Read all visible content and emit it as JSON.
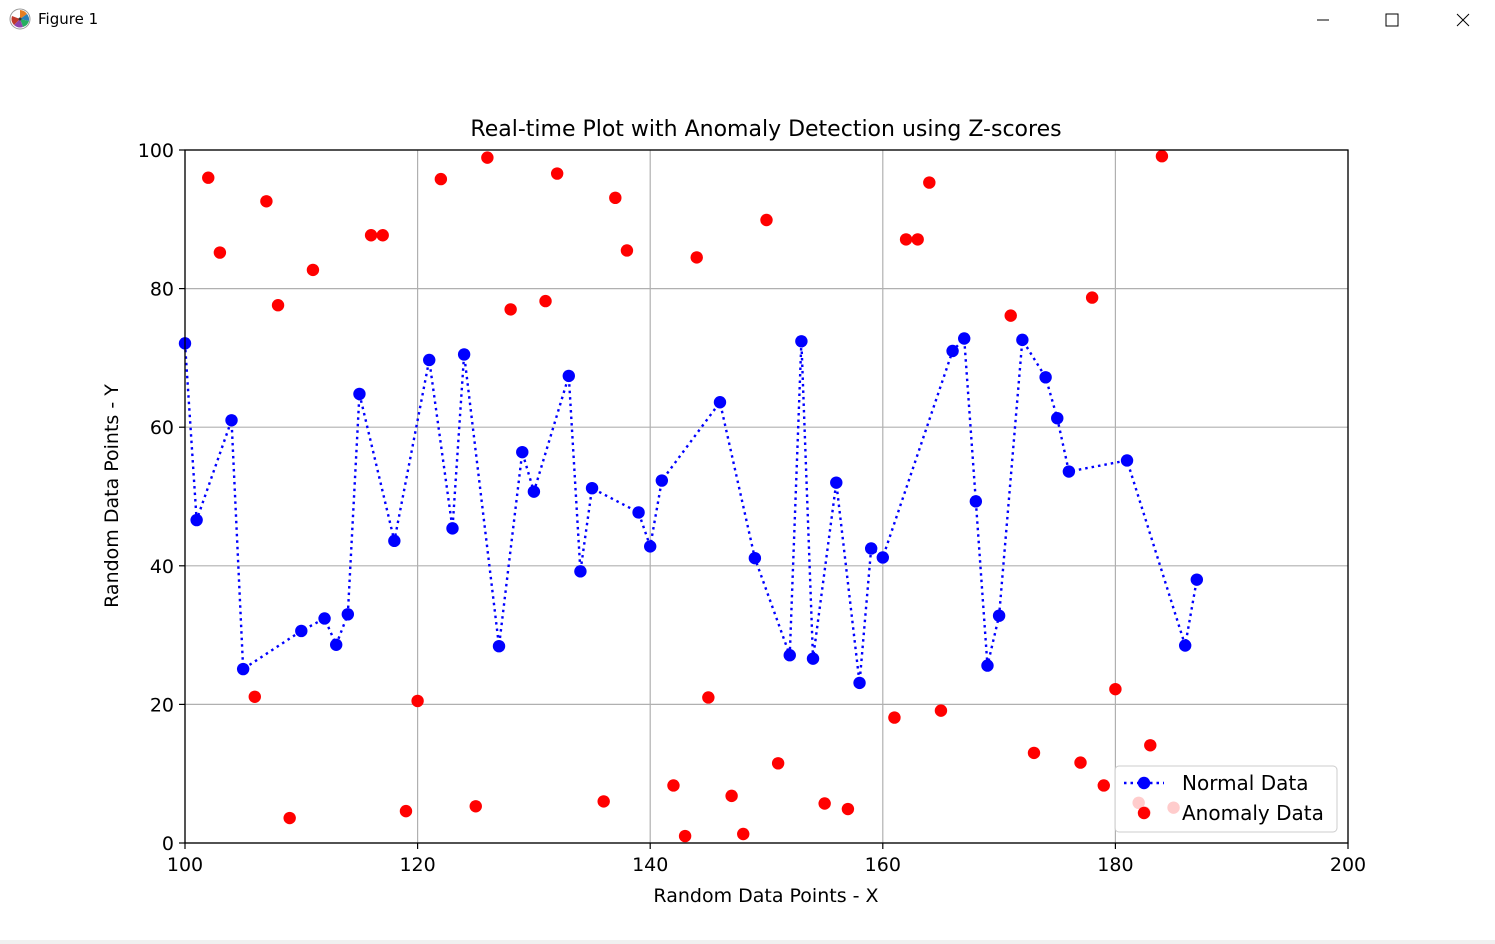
{
  "window": {
    "title": "Figure 1",
    "icon": "matplotlib-logo-icon",
    "controls": [
      "minimize-icon",
      "maximize-icon",
      "close-icon"
    ]
  },
  "chart_data": {
    "type": "scatter",
    "title": "Real-time Plot with Anomaly Detection using Z-scores",
    "xlabel": "Random Data Points - X",
    "ylabel": "Random Data Points - Y",
    "xlim": [
      100,
      200
    ],
    "ylim": [
      0,
      100
    ],
    "xticks": [
      100,
      120,
      140,
      160,
      180,
      200
    ],
    "yticks": [
      0,
      20,
      40,
      60,
      80,
      100
    ],
    "xtick_labels": [
      "100",
      "120",
      "140",
      "160",
      "180",
      "200"
    ],
    "ytick_labels": [
      "0",
      "20",
      "40",
      "60",
      "80",
      "100"
    ],
    "grid": true,
    "legend_position": "lower right",
    "series": [
      {
        "name": "Normal Data",
        "color": "#0000ff",
        "marker": "circle",
        "line_style": "dotted",
        "points": [
          [
            100,
            72.1
          ],
          [
            101,
            46.6
          ],
          [
            104,
            61.0
          ],
          [
            105,
            25.1
          ],
          [
            110,
            30.6
          ],
          [
            112,
            32.4
          ],
          [
            113,
            28.6
          ],
          [
            114,
            33.0
          ],
          [
            115,
            64.8
          ],
          [
            118,
            43.6
          ],
          [
            121,
            69.7
          ],
          [
            123,
            45.4
          ],
          [
            124,
            70.5
          ],
          [
            127,
            28.4
          ],
          [
            129,
            56.4
          ],
          [
            130,
            50.7
          ],
          [
            133,
            67.4
          ],
          [
            134,
            39.2
          ],
          [
            135,
            51.2
          ],
          [
            139,
            47.7
          ],
          [
            140,
            42.8
          ],
          [
            141,
            52.3
          ],
          [
            146,
            63.6
          ],
          [
            149,
            41.1
          ],
          [
            152,
            27.1
          ],
          [
            153,
            72.4
          ],
          [
            154,
            26.6
          ],
          [
            156,
            52.0
          ],
          [
            158,
            23.1
          ],
          [
            159,
            42.5
          ],
          [
            160,
            41.2
          ],
          [
            166,
            71.0
          ],
          [
            167,
            72.8
          ],
          [
            168,
            49.3
          ],
          [
            169,
            25.6
          ],
          [
            170,
            32.8
          ],
          [
            172,
            72.6
          ],
          [
            174,
            67.2
          ],
          [
            175,
            61.3
          ],
          [
            176,
            53.6
          ],
          [
            181,
            55.2
          ],
          [
            186,
            28.5
          ],
          [
            187,
            38.0
          ]
        ]
      },
      {
        "name": "Anomaly Data",
        "color": "#ff0000",
        "marker": "circle",
        "line_style": "none",
        "points": [
          [
            102,
            96.0
          ],
          [
            103,
            85.2
          ],
          [
            106,
            21.1
          ],
          [
            107,
            92.6
          ],
          [
            108,
            77.6
          ],
          [
            109,
            3.6
          ],
          [
            111,
            82.7
          ],
          [
            116,
            87.7
          ],
          [
            117,
            87.7
          ],
          [
            119,
            4.6
          ],
          [
            120,
            20.5
          ],
          [
            122,
            95.8
          ],
          [
            125,
            5.3
          ],
          [
            126,
            98.9
          ],
          [
            128,
            77.0
          ],
          [
            131,
            78.2
          ],
          [
            132,
            96.6
          ],
          [
            136,
            6.0
          ],
          [
            137,
            93.1
          ],
          [
            138,
            85.5
          ],
          [
            142,
            8.3
          ],
          [
            143,
            1.0
          ],
          [
            144,
            84.5
          ],
          [
            145,
            21.0
          ],
          [
            147,
            6.8
          ],
          [
            148,
            1.3
          ],
          [
            150,
            89.9
          ],
          [
            151,
            11.5
          ],
          [
            155,
            5.7
          ],
          [
            157,
            4.9
          ],
          [
            161,
            18.1
          ],
          [
            162,
            87.1
          ],
          [
            163,
            87.1
          ],
          [
            164,
            95.3
          ],
          [
            165,
            19.1
          ],
          [
            171,
            76.1
          ],
          [
            173,
            13.0
          ],
          [
            177,
            11.6
          ],
          [
            178,
            78.7
          ],
          [
            179,
            8.3
          ],
          [
            180,
            22.2
          ],
          [
            182,
            5.8
          ],
          [
            182.5,
            4.4
          ],
          [
            183,
            14.1
          ],
          [
            184,
            99.1
          ],
          [
            185,
            5.1
          ]
        ]
      }
    ]
  }
}
